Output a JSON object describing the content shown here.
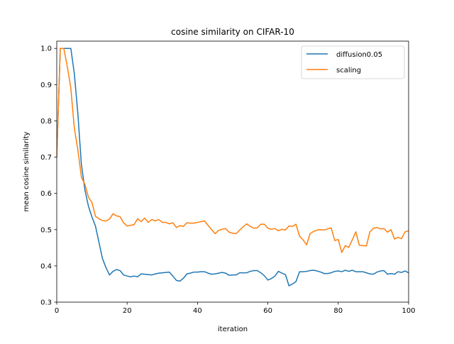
{
  "chart_data": {
    "type": "line",
    "title": "cosine similarity on CIFAR-10",
    "xlabel": "iteration",
    "ylabel": "mean cosine similarity",
    "xlim": [
      0,
      100
    ],
    "ylim": [
      0.3,
      1.02
    ],
    "xticks": [
      0,
      20,
      40,
      60,
      80,
      100
    ],
    "yticks": [
      0.3,
      0.4,
      0.5,
      0.6,
      0.7,
      0.8,
      0.9,
      1.0
    ],
    "xtick_labels": [
      "0",
      "20",
      "40",
      "60",
      "80",
      "100"
    ],
    "ytick_labels": [
      "0.3",
      "0.4",
      "0.5",
      "0.6",
      "0.7",
      "0.8",
      "0.9",
      "1.0"
    ],
    "grid": false,
    "legend_position": "upper-right",
    "series": [
      {
        "name": "diffusion0.05",
        "color": "#1f77b4",
        "x": [
          0,
          1,
          2,
          3,
          4,
          5,
          6,
          7,
          8,
          9,
          10,
          11,
          12,
          13,
          14,
          15,
          16,
          17,
          18,
          19,
          20,
          21,
          22,
          23,
          24,
          25,
          26,
          27,
          28,
          29,
          30,
          31,
          32,
          33,
          34,
          35,
          36,
          37,
          38,
          39,
          40,
          41,
          42,
          43,
          44,
          45,
          46,
          47,
          48,
          49,
          50,
          51,
          52,
          53,
          54,
          55,
          56,
          57,
          58,
          59,
          60,
          61,
          62,
          63,
          64,
          65,
          66,
          67,
          68,
          69,
          70,
          71,
          72,
          73,
          74,
          75,
          76,
          77,
          78,
          79,
          80,
          81,
          82,
          83,
          84,
          85,
          86,
          87,
          88,
          89,
          90,
          91,
          92,
          93,
          94,
          95,
          96,
          97,
          98,
          99,
          100
        ],
        "values": [
          0.7,
          1.0,
          1.0,
          1.0,
          1.0,
          0.93,
          0.82,
          0.68,
          0.61,
          0.565,
          0.535,
          0.51,
          0.465,
          0.42,
          0.395,
          0.375,
          0.385,
          0.39,
          0.387,
          0.375,
          0.372,
          0.37,
          0.372,
          0.37,
          0.378,
          0.377,
          0.376,
          0.375,
          0.378,
          0.38,
          0.381,
          0.382,
          0.383,
          0.372,
          0.36,
          0.358,
          0.366,
          0.378,
          0.38,
          0.383,
          0.383,
          0.384,
          0.384,
          0.38,
          0.377,
          0.378,
          0.38,
          0.382,
          0.38,
          0.374,
          0.375,
          0.375,
          0.381,
          0.381,
          0.381,
          0.385,
          0.387,
          0.387,
          0.381,
          0.373,
          0.361,
          0.365,
          0.372,
          0.385,
          0.38,
          0.376,
          0.345,
          0.35,
          0.357,
          0.384,
          0.384,
          0.385,
          0.387,
          0.388,
          0.386,
          0.383,
          0.379,
          0.379,
          0.381,
          0.385,
          0.386,
          0.384,
          0.388,
          0.385,
          0.388,
          0.384,
          0.384,
          0.384,
          0.381,
          0.378,
          0.377,
          0.383,
          0.386,
          0.387,
          0.377,
          0.379,
          0.377,
          0.384,
          0.382,
          0.386,
          0.381
        ]
      },
      {
        "name": "scaling",
        "color": "#ff7f0e",
        "x": [
          0,
          1,
          2,
          3,
          4,
          5,
          6,
          7,
          8,
          9,
          10,
          11,
          12,
          13,
          14,
          15,
          16,
          17,
          18,
          19,
          20,
          21,
          22,
          23,
          24,
          25,
          26,
          27,
          28,
          29,
          30,
          31,
          32,
          33,
          34,
          35,
          36,
          37,
          38,
          39,
          40,
          41,
          42,
          43,
          44,
          45,
          46,
          47,
          48,
          49,
          50,
          51,
          52,
          53,
          54,
          55,
          56,
          57,
          58,
          59,
          60,
          61,
          62,
          63,
          64,
          65,
          66,
          67,
          68,
          69,
          70,
          71,
          72,
          73,
          74,
          75,
          76,
          77,
          78,
          79,
          80,
          81,
          82,
          83,
          84,
          85,
          86,
          87,
          88,
          89,
          90,
          91,
          92,
          93,
          94,
          95,
          96,
          97,
          98,
          99,
          100
        ],
        "values": [
          0.7,
          1.0,
          1.0,
          0.95,
          0.89,
          0.78,
          0.72,
          0.645,
          0.625,
          0.59,
          0.575,
          0.537,
          0.53,
          0.525,
          0.524,
          0.529,
          0.544,
          0.538,
          0.536,
          0.519,
          0.51,
          0.512,
          0.514,
          0.53,
          0.522,
          0.532,
          0.52,
          0.528,
          0.524,
          0.528,
          0.52,
          0.52,
          0.516,
          0.519,
          0.506,
          0.511,
          0.509,
          0.519,
          0.518,
          0.518,
          0.52,
          0.522,
          0.524,
          0.512,
          0.5,
          0.489,
          0.498,
          0.501,
          0.503,
          0.493,
          0.49,
          0.489,
          0.499,
          0.508,
          0.516,
          0.509,
          0.504,
          0.505,
          0.515,
          0.515,
          0.504,
          0.501,
          0.503,
          0.497,
          0.501,
          0.499,
          0.51,
          0.509,
          0.515,
          0.482,
          0.472,
          0.458,
          0.489,
          0.495,
          0.499,
          0.5,
          0.499,
          0.502,
          0.505,
          0.47,
          0.473,
          0.437,
          0.456,
          0.451,
          0.472,
          0.494,
          0.457,
          0.456,
          0.455,
          0.494,
          0.504,
          0.506,
          0.502,
          0.503,
          0.493,
          0.5,
          0.474,
          0.479,
          0.475,
          0.494,
          0.497
        ]
      }
    ]
  }
}
